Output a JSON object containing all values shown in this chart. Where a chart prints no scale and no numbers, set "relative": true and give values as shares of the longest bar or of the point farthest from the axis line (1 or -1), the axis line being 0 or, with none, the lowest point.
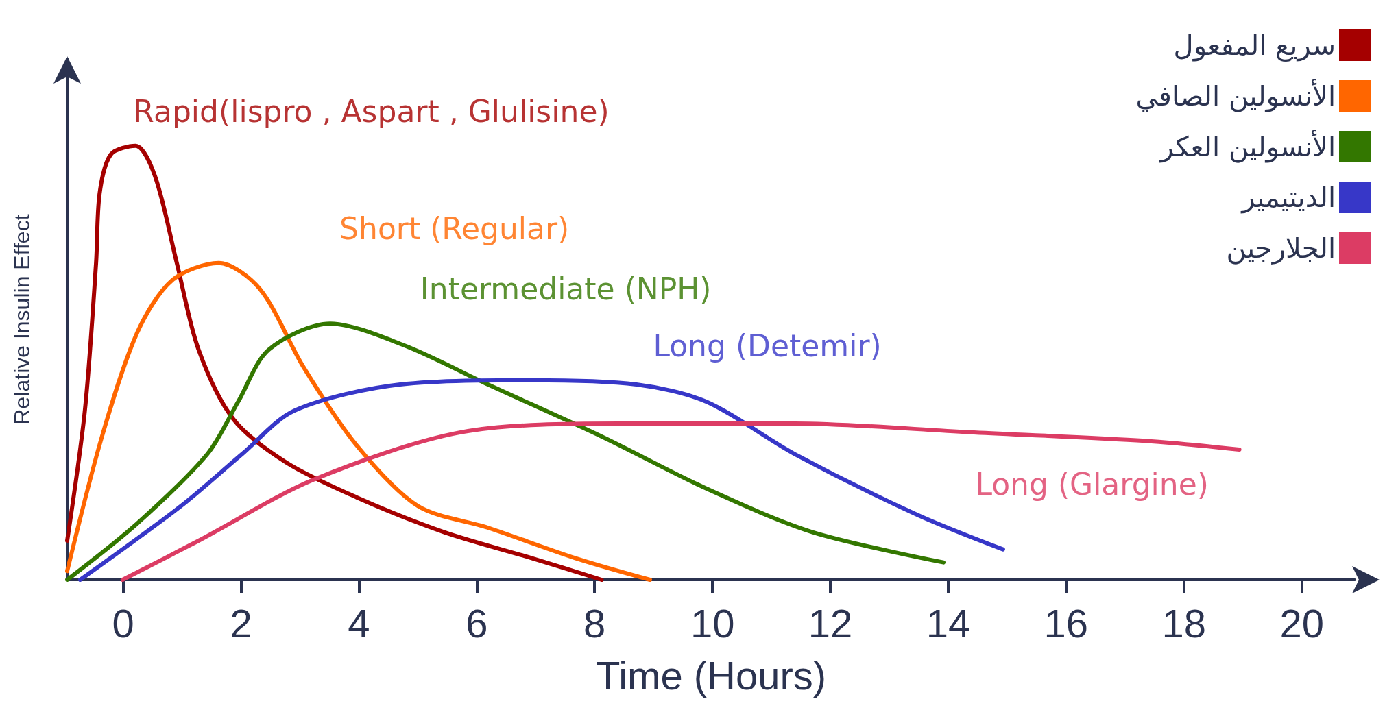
{
  "chart_data": {
    "type": "line",
    "relative": true,
    "xlabel": "Time (Hours)",
    "ylabel": "Relative Insulin Effect",
    "xlim": [
      -0.95,
      20.9
    ],
    "xticks": [
      0,
      2,
      4,
      6,
      8,
      10,
      12,
      14,
      16,
      18,
      20
    ],
    "grid": false,
    "legend": "top right",
    "marker": "none",
    "line_style": "solid",
    "series": [
      {
        "name": "سريع المفعول",
        "color": "#a50000",
        "x": [
          -0.95,
          -0.65,
          -0.46,
          -0.4,
          -0.21,
          0.21,
          0.54,
          0.91,
          1.28,
          1.87,
          2.77,
          3.96,
          5.44,
          6.93,
          8.12
        ],
        "values": [
          0.09,
          0.39,
          0.73,
          0.89,
          0.98,
          1.0,
          0.93,
          0.73,
          0.53,
          0.37,
          0.27,
          0.19,
          0.11,
          0.05,
          0
        ]
      },
      {
        "name": "الأنسولين الصافي",
        "color": "#ff6600",
        "x": [
          -0.95,
          -0.36,
          0.24,
          0.83,
          1.62,
          2.32,
          3.06,
          3.96,
          5.0,
          6.19,
          7.67,
          8.94
        ],
        "values": [
          0.02,
          0.33,
          0.57,
          0.69,
          0.73,
          0.67,
          0.49,
          0.31,
          0.17,
          0.12,
          0.05,
          0
        ]
      },
      {
        "name": "الأنسولين العكر",
        "color": "#337700",
        "x": [
          -0.95,
          0.24,
          1.43,
          1.95,
          2.47,
          3.51,
          4.77,
          6.19,
          8.12,
          9.9,
          11.69,
          13.92
        ],
        "values": [
          0,
          0.13,
          0.29,
          0.41,
          0.53,
          0.59,
          0.54,
          0.45,
          0.33,
          0.21,
          0.11,
          0.04
        ]
      },
      {
        "name": "الديتيمير",
        "color": "#3737c8",
        "x": [
          -0.73,
          0.98,
          2.02,
          2.91,
          4.7,
          6.93,
          8.71,
          9.9,
          11.39,
          13.47,
          14.93
        ],
        "values": [
          0,
          0.17,
          0.29,
          0.39,
          0.45,
          0.46,
          0.45,
          0.41,
          0.29,
          0.15,
          0.07
        ]
      },
      {
        "name": "الجلارجين",
        "color": "#dc3c64",
        "x": [
          -0.01,
          1.28,
          3.22,
          5.74,
          8.42,
          11.39,
          14.36,
          17.34,
          18.94
        ],
        "values": [
          0,
          0.09,
          0.23,
          0.34,
          0.36,
          0.36,
          0.34,
          0.32,
          0.3
        ]
      }
    ],
    "annotations": [
      "Rapid(lispro , Aspart , Glulisine)",
      "Short (Regular)",
      "Intermediate (NPH)",
      "Long (Detemir)",
      "Long (Glargine)"
    ]
  }
}
